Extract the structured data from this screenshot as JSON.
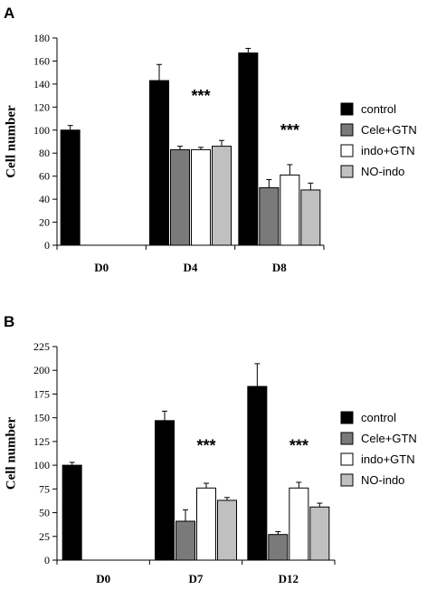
{
  "chart_data": [
    {
      "panel": "A",
      "type": "bar",
      "ylabel": "Cell number",
      "ylim": [
        0,
        180
      ],
      "yticks": [
        0,
        20,
        40,
        60,
        80,
        100,
        120,
        140,
        160,
        180
      ],
      "categories": [
        "D0",
        "D4",
        "D8"
      ],
      "series": [
        {
          "name": "control",
          "values": [
            100,
            143,
            167
          ],
          "errors": [
            4,
            14,
            4
          ]
        },
        {
          "name": "Cele+GTN",
          "values": [
            null,
            83,
            50
          ],
          "errors": [
            null,
            3,
            7
          ]
        },
        {
          "name": "indo+GTN",
          "values": [
            null,
            83,
            61
          ],
          "errors": [
            null,
            2,
            9
          ]
        },
        {
          "name": "NO-indo",
          "values": [
            null,
            86,
            48
          ],
          "errors": [
            null,
            5,
            6
          ]
        }
      ],
      "annotations": [
        {
          "text": "***",
          "category": "D4",
          "y": 125
        },
        {
          "text": "***",
          "category": "D8",
          "y": 95
        }
      ],
      "legend_position": "right"
    },
    {
      "panel": "B",
      "type": "bar",
      "ylabel": "Cell number",
      "ylim": [
        0,
        225
      ],
      "yticks": [
        0,
        25,
        50,
        75,
        100,
        125,
        150,
        175,
        200,
        225
      ],
      "categories": [
        "D0",
        "D7",
        "D12"
      ],
      "series": [
        {
          "name": "control",
          "values": [
            100,
            147,
            183
          ],
          "errors": [
            3,
            10,
            24
          ]
        },
        {
          "name": "Cele+GTN",
          "values": [
            null,
            41,
            27
          ],
          "errors": [
            null,
            12,
            3
          ]
        },
        {
          "name": "indo+GTN",
          "values": [
            null,
            76,
            76
          ],
          "errors": [
            null,
            5,
            6
          ]
        },
        {
          "name": "NO-indo",
          "values": [
            null,
            63,
            56
          ],
          "errors": [
            null,
            3,
            4
          ]
        }
      ],
      "annotations": [
        {
          "text": "***",
          "category": "D7",
          "y": 115
        },
        {
          "text": "***",
          "category": "D12",
          "y": 115
        }
      ],
      "legend_position": "right"
    }
  ],
  "colors": {
    "control": "#000000",
    "Cele+GTN": "#7a7a7a",
    "indo+GTN": "#ffffff",
    "NO-indo": "#c0c0c0"
  }
}
